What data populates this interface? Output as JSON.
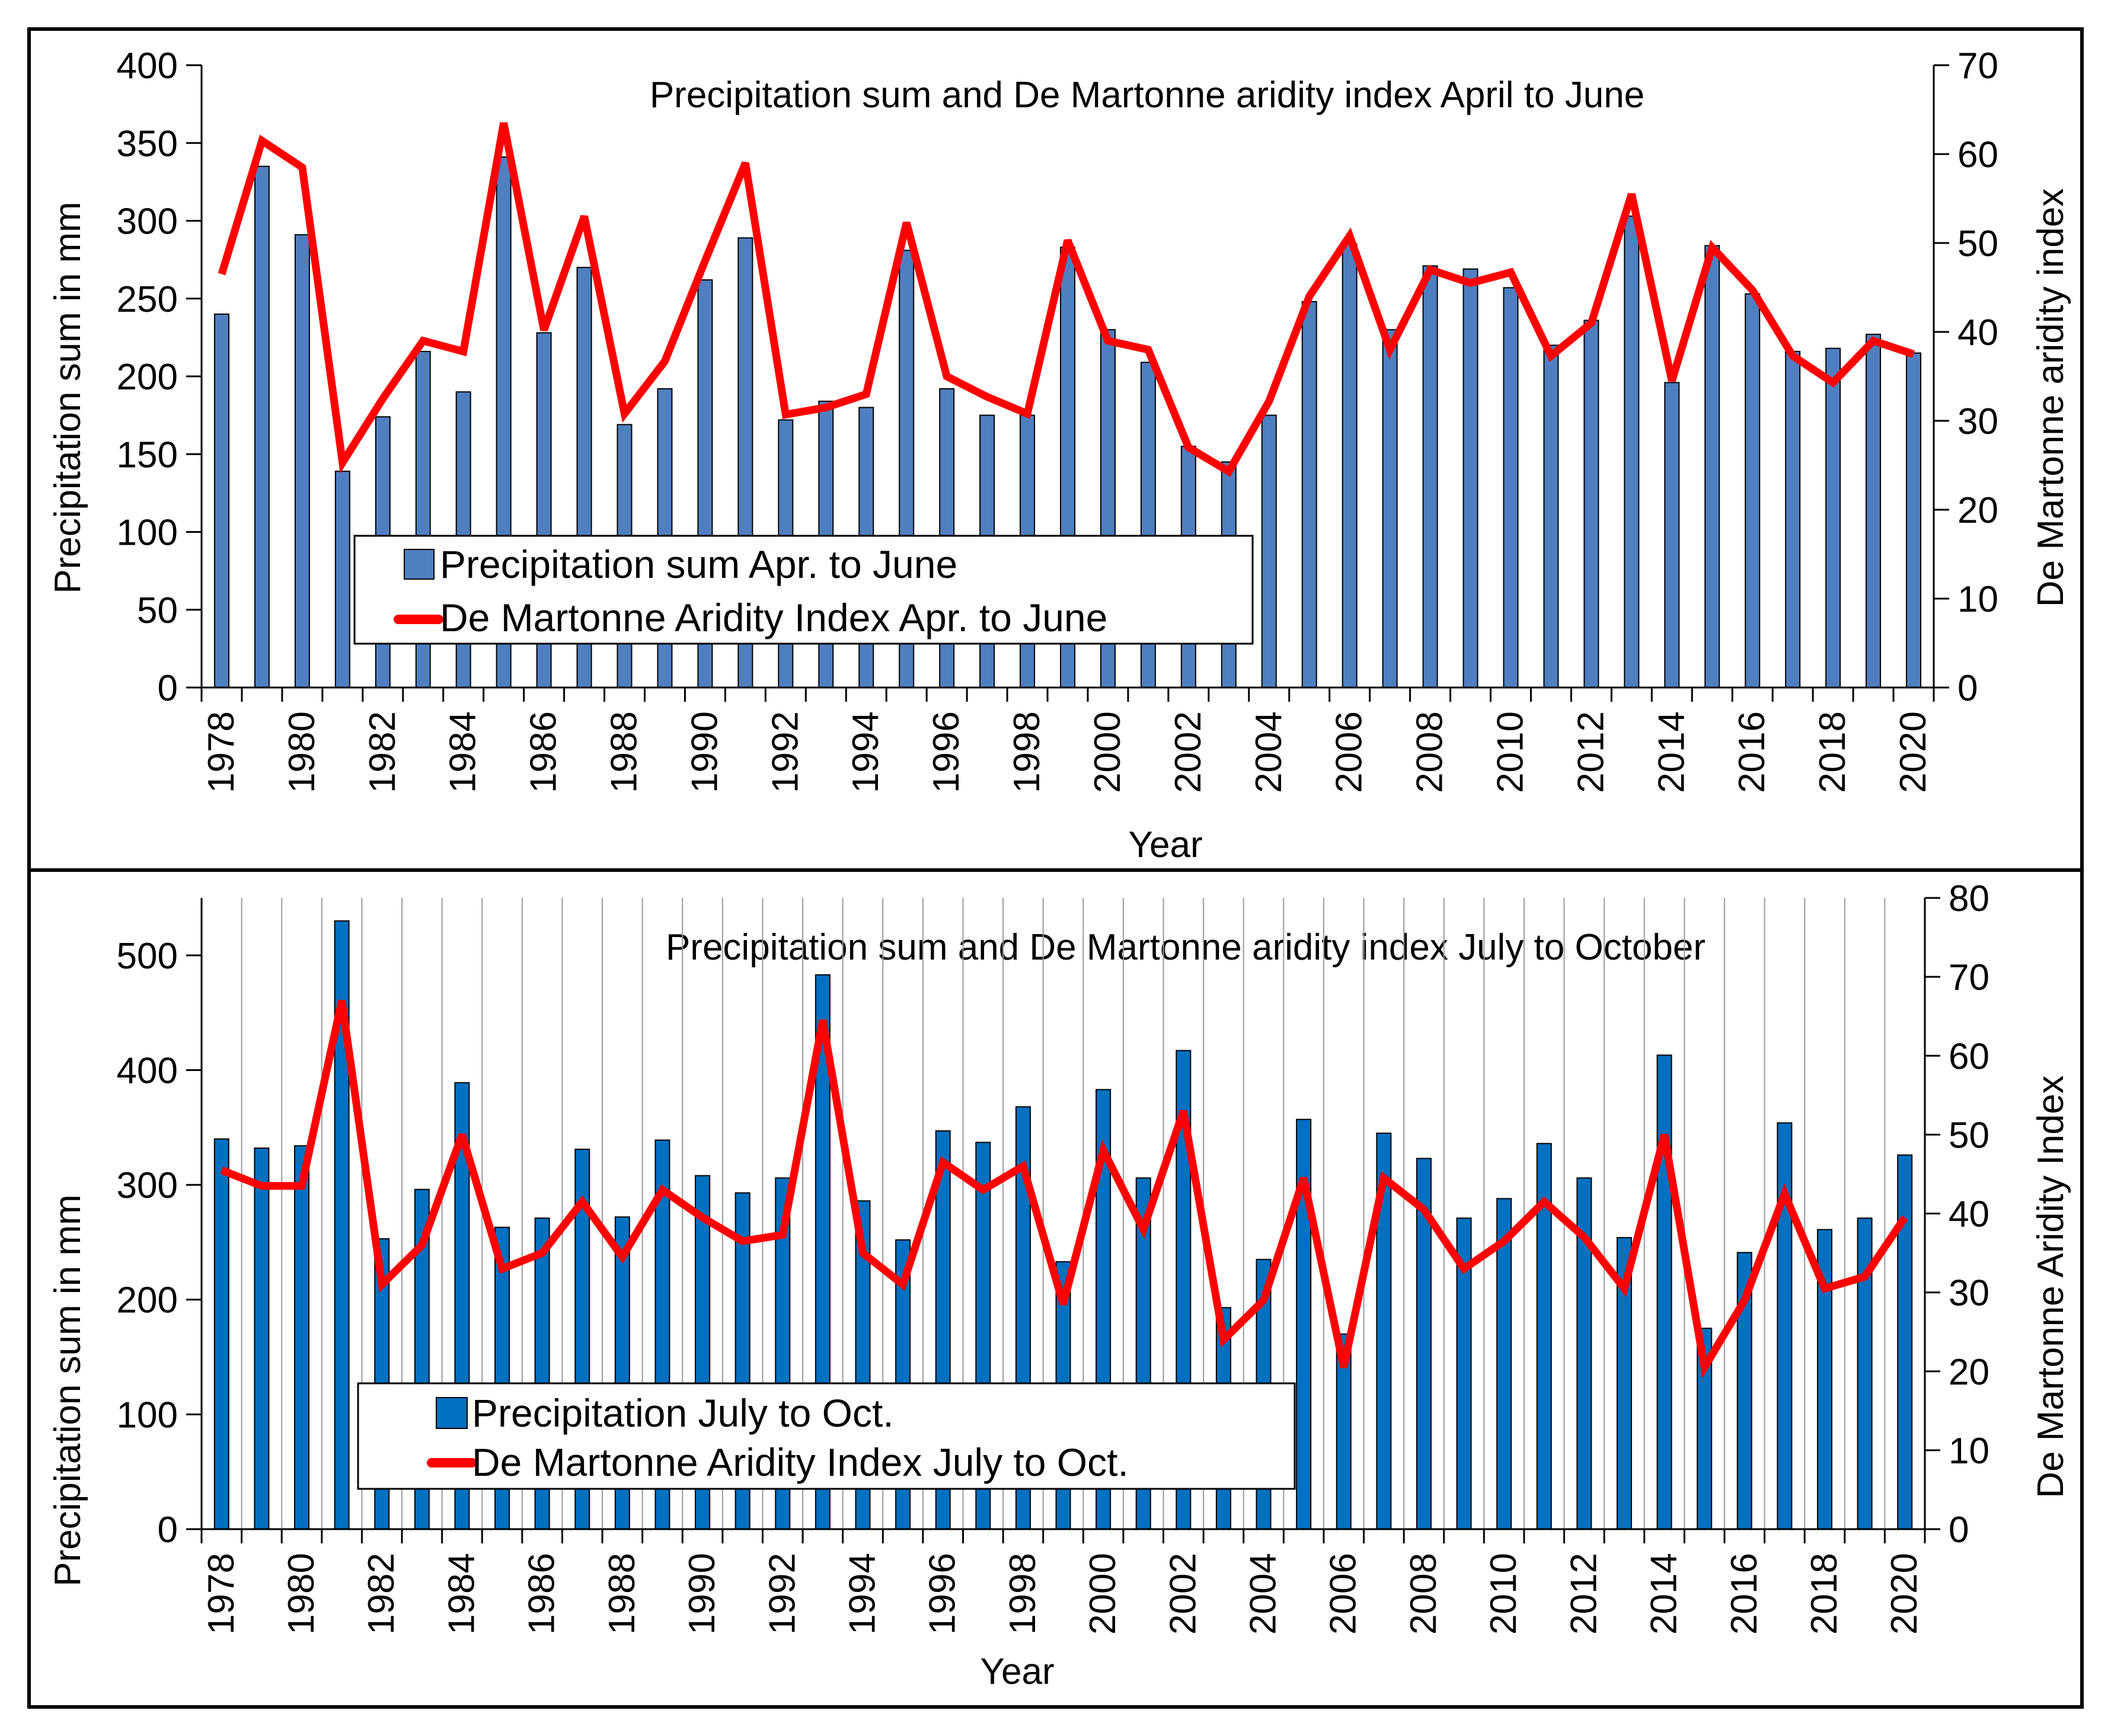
{
  "chart_data": [
    {
      "type": "bar+line",
      "title": "Precipitation sum and De Martonne aridity index April to June",
      "xlabel": "Year",
      "ylabel_left": "Precipitation sum in mm",
      "ylabel_right": "De Martonne aridity index",
      "ylim_left": [
        0,
        400
      ],
      "yticks_left": [
        0,
        50,
        100,
        150,
        200,
        250,
        300,
        350,
        400
      ],
      "ylim_right": [
        0,
        70
      ],
      "yticks_right": [
        0,
        10,
        20,
        30,
        40,
        50,
        60,
        70
      ],
      "years": [
        1978,
        1979,
        1980,
        1981,
        1982,
        1983,
        1984,
        1985,
        1986,
        1987,
        1988,
        1989,
        1990,
        1991,
        1992,
        1993,
        1994,
        1995,
        1996,
        1997,
        1998,
        1999,
        2000,
        2001,
        2002,
        2003,
        2004,
        2005,
        2006,
        2007,
        2008,
        2009,
        2010,
        2011,
        2012,
        2013,
        2014,
        2015,
        2016,
        2017,
        2018,
        2019,
        2020
      ],
      "xtick_labels": [
        "1978",
        "1980",
        "1982",
        "1984",
        "1986",
        "1988",
        "1990",
        "1992",
        "1994",
        "1996",
        "1998",
        "2000",
        "2002",
        "2004",
        "2006",
        "2008",
        "2010",
        "2012",
        "2014",
        "2016",
        "2018",
        "2020"
      ],
      "vertical_grid": false,
      "series": [
        {
          "name": "Precipitation sum Apr. to June",
          "kind": "bar",
          "axis": "left",
          "color": "#4f7fc0",
          "values": [
            240,
            335,
            291,
            139,
            174,
            216,
            190,
            341,
            228,
            270,
            169,
            192,
            262,
            289,
            172,
            184,
            180,
            281,
            192,
            175,
            175,
            283,
            230,
            209,
            155,
            145,
            175,
            248,
            285,
            230,
            271,
            269,
            257,
            220,
            236,
            303,
            196,
            284,
            253,
            216,
            218,
            227,
            215
          ]
        },
        {
          "name": "De Martonne Aridity Index Apr. to June",
          "kind": "line",
          "axis": "right",
          "color": "#ff0000",
          "values": [
            46.5,
            61.5,
            58.5,
            25.3,
            32.5,
            39,
            37.8,
            63.5,
            40.2,
            53,
            30.8,
            36.7,
            48,
            59,
            30.7,
            31.5,
            33,
            52.3,
            35,
            32.7,
            30.8,
            50.3,
            39,
            38,
            27,
            24.3,
            32.2,
            44,
            50.8,
            38,
            47,
            45.5,
            46.7,
            37.3,
            41,
            55.5,
            34.5,
            49.5,
            44.7,
            37.3,
            34.3,
            39,
            37.5
          ]
        }
      ]
    },
    {
      "type": "bar+line",
      "title": "Precipitation sum and De Martonne aridity index July to October",
      "xlabel": "Year",
      "ylabel_left": "Precipitation sum in mm",
      "ylabel_right": "De Martonne Aridity Index",
      "ylim_left": [
        0,
        550
      ],
      "yticks_left": [
        0,
        100,
        200,
        300,
        400,
        500
      ],
      "ylim_right": [
        0,
        80
      ],
      "yticks_right": [
        0,
        10,
        20,
        30,
        40,
        50,
        60,
        70,
        80
      ],
      "years": [
        1978,
        1979,
        1980,
        1981,
        1982,
        1983,
        1984,
        1985,
        1986,
        1987,
        1988,
        1989,
        1990,
        1991,
        1992,
        1993,
        1994,
        1995,
        1996,
        1997,
        1998,
        1999,
        2000,
        2001,
        2002,
        2003,
        2004,
        2005,
        2006,
        2007,
        2008,
        2009,
        2010,
        2011,
        2012,
        2013,
        2014,
        2015,
        2016,
        2017,
        2018,
        2019,
        2020
      ],
      "xtick_labels": [
        "1978",
        "1980",
        "1982",
        "1984",
        "1986",
        "1988",
        "1990",
        "1992",
        "1994",
        "1996",
        "1998",
        "2000",
        "2002",
        "2004",
        "2006",
        "2008",
        "2010",
        "2012",
        "2014",
        "2016",
        "2018",
        "2020"
      ],
      "vertical_grid": true,
      "series": [
        {
          "name": "Precipitation July to Oct.",
          "kind": "bar",
          "axis": "left",
          "color": "#0070c0",
          "values": [
            340,
            332,
            334,
            530,
            253,
            296,
            389,
            263,
            271,
            331,
            272,
            339,
            308,
            293,
            306,
            483,
            286,
            252,
            347,
            337,
            368,
            233,
            383,
            306,
            417,
            193,
            235,
            357,
            170,
            345,
            323,
            271,
            288,
            336,
            306,
            254,
            413,
            175,
            241,
            354,
            261,
            271,
            326
          ]
        },
        {
          "name": "De Martonne Aridity Index July to Oct.",
          "kind": "line",
          "axis": "right",
          "color": "#ff0000",
          "values": [
            45.5,
            43.5,
            43.5,
            67,
            31,
            36,
            50,
            33,
            35,
            41.5,
            34.5,
            43,
            39.5,
            36.5,
            37.3,
            64.5,
            35,
            31,
            46.5,
            43,
            46,
            28.5,
            48,
            38,
            53,
            24,
            29,
            44.5,
            20.5,
            44.5,
            40.5,
            33,
            36.5,
            41.5,
            37,
            30.5,
            50,
            20.5,
            29,
            42.5,
            30.5,
            32,
            39.5
          ]
        }
      ]
    }
  ]
}
